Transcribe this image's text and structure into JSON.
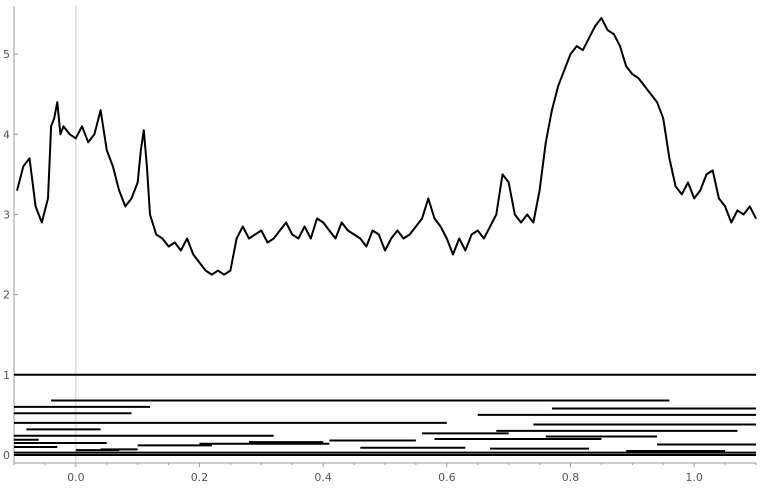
{
  "chart_data": {
    "type": "line",
    "title": "",
    "xlabel": "",
    "ylabel": "",
    "xlim": [
      -0.1,
      1.1
    ],
    "ylim": [
      -0.1,
      5.6
    ],
    "x_ticks": [
      "0.0",
      "0.2",
      "0.4",
      "0.6",
      "0.8",
      "1.0"
    ],
    "x_tick_values": [
      0.0,
      0.2,
      0.4,
      0.6,
      0.8,
      1.0
    ],
    "y_ticks": [
      "0",
      "1",
      "2",
      "3",
      "4",
      "5"
    ],
    "y_tick_values": [
      0,
      1,
      2,
      3,
      4,
      5
    ],
    "grid": false,
    "colors": {
      "line": "#000000",
      "axis": "#999999",
      "background": "#ffffff"
    },
    "series": [
      {
        "x": [
          -0.095,
          -0.085,
          -0.075,
          -0.065,
          -0.055,
          -0.045,
          -0.04,
          -0.035,
          -0.03,
          -0.025,
          -0.02,
          -0.01,
          0.0,
          0.01,
          0.02,
          0.03,
          0.04,
          0.05,
          0.06,
          0.07,
          0.08,
          0.09,
          0.1,
          0.105,
          0.11,
          0.115,
          0.12,
          0.13,
          0.14,
          0.15,
          0.16,
          0.17,
          0.18,
          0.19,
          0.2,
          0.21,
          0.22,
          0.23,
          0.24,
          0.25,
          0.26,
          0.27,
          0.28,
          0.29,
          0.3,
          0.31,
          0.32,
          0.33,
          0.34,
          0.35,
          0.36,
          0.37,
          0.38,
          0.39,
          0.4,
          0.41,
          0.42,
          0.43,
          0.44,
          0.45,
          0.46,
          0.47,
          0.48,
          0.49,
          0.5,
          0.51,
          0.52,
          0.53,
          0.54,
          0.55,
          0.56,
          0.57,
          0.58,
          0.59,
          0.6,
          0.61,
          0.62,
          0.63,
          0.64,
          0.65,
          0.66,
          0.67,
          0.68,
          0.69,
          0.7,
          0.71,
          0.72,
          0.73,
          0.74,
          0.75,
          0.76,
          0.77,
          0.78,
          0.79,
          0.8,
          0.81,
          0.82,
          0.83,
          0.84,
          0.85,
          0.86,
          0.87,
          0.88,
          0.89,
          0.9,
          0.91,
          0.92,
          0.93,
          0.94,
          0.95,
          0.96,
          0.97,
          0.98,
          0.99,
          1.0,
          1.01,
          1.02,
          1.03,
          1.04,
          1.05,
          1.06,
          1.07,
          1.08,
          1.09,
          1.1
        ],
        "y": [
          3.3,
          3.6,
          3.7,
          3.1,
          2.9,
          3.2,
          4.1,
          4.2,
          4.4,
          4.0,
          4.1,
          4.0,
          3.95,
          4.1,
          3.9,
          4.0,
          4.3,
          3.8,
          3.6,
          3.3,
          3.1,
          3.2,
          3.4,
          3.8,
          4.05,
          3.6,
          3.0,
          2.75,
          2.7,
          2.6,
          2.65,
          2.55,
          2.7,
          2.5,
          2.4,
          2.3,
          2.25,
          2.3,
          2.25,
          2.3,
          2.7,
          2.85,
          2.7,
          2.75,
          2.8,
          2.65,
          2.7,
          2.8,
          2.9,
          2.75,
          2.7,
          2.85,
          2.7,
          2.95,
          2.9,
          2.8,
          2.7,
          2.9,
          2.8,
          2.75,
          2.7,
          2.6,
          2.8,
          2.75,
          2.55,
          2.7,
          2.8,
          2.7,
          2.75,
          2.85,
          2.95,
          3.2,
          2.95,
          2.85,
          2.7,
          2.5,
          2.7,
          2.55,
          2.75,
          2.8,
          2.7,
          2.85,
          3.0,
          3.5,
          3.4,
          3.0,
          2.9,
          3.0,
          2.9,
          3.3,
          3.9,
          4.3,
          4.6,
          4.8,
          5.0,
          5.1,
          5.05,
          5.2,
          5.35,
          5.45,
          5.3,
          5.25,
          5.1,
          4.85,
          4.75,
          4.7,
          4.6,
          4.5,
          4.4,
          4.2,
          3.7,
          3.35,
          3.25,
          3.4,
          3.2,
          3.3,
          3.5,
          3.55,
          3.2,
          3.1,
          2.9,
          3.05,
          3.0,
          3.1,
          2.95
        ]
      }
    ],
    "segments": [
      {
        "y": 1.0,
        "x1": -0.1,
        "x2": 1.1
      },
      {
        "y": 0.68,
        "x1": -0.04,
        "x2": 0.96
      },
      {
        "y": 0.6,
        "x1": -0.1,
        "x2": 0.12
      },
      {
        "y": 0.58,
        "x1": 0.77,
        "x2": 1.1
      },
      {
        "y": 0.52,
        "x1": -0.1,
        "x2": 0.09
      },
      {
        "y": 0.5,
        "x1": 0.65,
        "x2": 1.1
      },
      {
        "y": 0.4,
        "x1": -0.1,
        "x2": 0.6
      },
      {
        "y": 0.38,
        "x1": 0.74,
        "x2": 1.1
      },
      {
        "y": 0.32,
        "x1": -0.08,
        "x2": 0.04
      },
      {
        "y": 0.3,
        "x1": 0.68,
        "x2": 1.07
      },
      {
        "y": 0.27,
        "x1": 0.56,
        "x2": 0.7
      },
      {
        "y": 0.24,
        "x1": -0.1,
        "x2": 0.32
      },
      {
        "y": 0.23,
        "x1": 0.76,
        "x2": 0.94
      },
      {
        "y": 0.2,
        "x1": 0.58,
        "x2": 0.85
      },
      {
        "y": 0.19,
        "x1": -0.1,
        "x2": -0.06
      },
      {
        "y": 0.18,
        "x1": 0.41,
        "x2": 0.55
      },
      {
        "y": 0.16,
        "x1": 0.28,
        "x2": 0.4
      },
      {
        "y": 0.15,
        "x1": -0.1,
        "x2": 0.05
      },
      {
        "y": 0.14,
        "x1": 0.2,
        "x2": 0.41
      },
      {
        "y": 0.13,
        "x1": 0.94,
        "x2": 1.1
      },
      {
        "y": 0.12,
        "x1": 0.1,
        "x2": 0.22
      },
      {
        "y": 0.1,
        "x1": -0.1,
        "x2": -0.03
      },
      {
        "y": 0.09,
        "x1": 0.46,
        "x2": 0.63
      },
      {
        "y": 0.08,
        "x1": 0.67,
        "x2": 0.83
      },
      {
        "y": 0.07,
        "x1": 0.04,
        "x2": 0.1
      },
      {
        "y": 0.06,
        "x1": 0.0,
        "x2": 0.07
      },
      {
        "y": 0.05,
        "x1": 0.89,
        "x2": 1.05
      },
      {
        "y": 0.03,
        "x1": -0.1,
        "x2": 1.1
      },
      {
        "y": 0.0,
        "x1": -0.1,
        "x2": 1.1
      }
    ]
  }
}
